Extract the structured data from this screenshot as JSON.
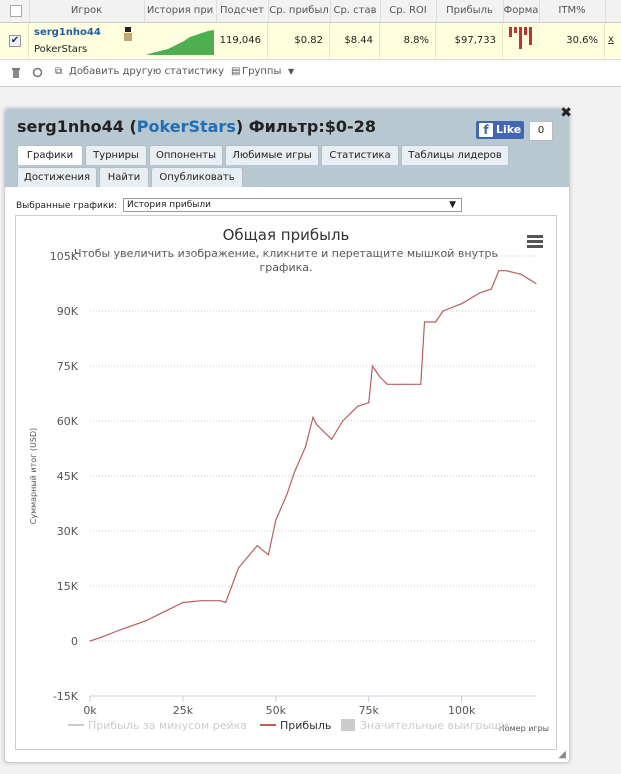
{
  "stats_table": {
    "headers": [
      "Игрок",
      "История при",
      "Подсчет",
      "Ср. прибыл",
      "Ср. став",
      "Ср. ROI",
      "Прибыль",
      "Форма",
      "ITM%"
    ],
    "row": {
      "player": "serg1nho44",
      "site": "PokerStars",
      "count": "119,046",
      "avg_profit": "$0.82",
      "avg_stake": "$8.44",
      "avg_roi": "8.8%",
      "profit": "$97,733",
      "itm": "30.6%",
      "remove": "x"
    }
  },
  "toolbar": {
    "add_label": "Добавить другую статистику",
    "groups_label": "Группы"
  },
  "panel": {
    "title_player": "serg1nho44",
    "title_open": "(",
    "title_site": "PokerStars",
    "title_close": ")",
    "title_filter": "Фильтр:$0-28",
    "close": "✖",
    "like_label": "Like",
    "like_count": "0",
    "tabs_row1": [
      "Графики",
      "Турниры",
      "Оппоненты",
      "Любимые игры",
      "Статистика",
      "Таблицы лидеров"
    ],
    "tabs_row2": [
      "Достижения",
      "Найти",
      "Опубликовать"
    ],
    "selected_label": "Выбранные графики:",
    "selected_value": "История прибыли"
  },
  "chart_data": {
    "type": "line",
    "title": "Общая прибыль",
    "subtitle": "Чтобы увеличить изображение, кликните и перетащите мышкой внутрь графика.",
    "xlabel": "Номер игры",
    "ylabel": "Суммарный итог (USD)",
    "x_ticks": [
      "0k",
      "25k",
      "50k",
      "75k",
      "100k"
    ],
    "y_ticks": [
      "105K",
      "90K",
      "75K",
      "60K",
      "45K",
      "30K",
      "15K",
      "0",
      "-15K"
    ],
    "xlim": [
      0,
      120000
    ],
    "ylim": [
      -15000,
      105000
    ],
    "legend": [
      "Прибыль за минусом рейка",
      "Прибыль",
      "Значительные выигрыши"
    ],
    "legend_position": "bottom",
    "grid": true,
    "colors": {
      "profit": "#b5605f",
      "minus_rake": "#cccccc",
      "big_wins": "#cccccc"
    },
    "series": [
      {
        "name": "Прибыль",
        "x": [
          0,
          3000,
          8000,
          15000,
          20000,
          25000,
          30000,
          35000,
          36500,
          40000,
          45000,
          48000,
          50000,
          53000,
          55000,
          58000,
          60000,
          61000,
          65000,
          68000,
          70000,
          72000,
          75000,
          76000,
          78000,
          80000,
          85000,
          89000,
          90000,
          93000,
          95000,
          100000,
          105000,
          108000,
          110000,
          112000,
          116000,
          120000
        ],
        "y": [
          0,
          1000,
          3000,
          5500,
          8000,
          10500,
          11000,
          11000,
          10500,
          20000,
          26000,
          23500,
          33000,
          40000,
          46000,
          53000,
          61000,
          59000,
          55000,
          60000,
          62000,
          64000,
          65000,
          75000,
          72000,
          70000,
          70000,
          70000,
          87000,
          87000,
          90000,
          92000,
          95000,
          96000,
          101000,
          101000,
          100000,
          97500
        ]
      }
    ]
  }
}
